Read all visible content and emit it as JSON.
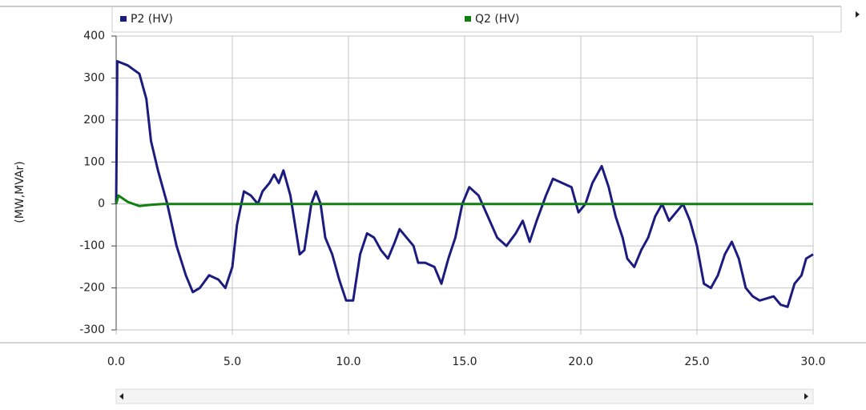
{
  "chart_data": {
    "type": "line",
    "y_label": "(MW,MVAr)",
    "xlim": [
      0,
      30
    ],
    "ylim": [
      -300,
      400
    ],
    "xticks": [
      {
        "value": 0,
        "label": "0.0"
      },
      {
        "value": 5,
        "label": "5.0"
      },
      {
        "value": 10,
        "label": "10.0"
      },
      {
        "value": 15,
        "label": "15.0"
      },
      {
        "value": 20,
        "label": "20.0"
      },
      {
        "value": 25,
        "label": "25.0"
      },
      {
        "value": 30,
        "label": "30.0"
      }
    ],
    "yticks": [
      -300,
      -200,
      -100,
      0,
      100,
      200,
      300,
      400
    ],
    "grid": true,
    "series": [
      {
        "name": "P2 (HV)",
        "color": "#1c1c80",
        "x": [
          0,
          0.05,
          0.5,
          1.0,
          1.3,
          1.5,
          1.8,
          2.2,
          2.6,
          3.0,
          3.3,
          3.6,
          4.0,
          4.4,
          4.7,
          5.0,
          5.2,
          5.5,
          5.8,
          6.1,
          6.3,
          6.6,
          6.8,
          7.0,
          7.2,
          7.5,
          7.7,
          7.9,
          8.1,
          8.4,
          8.6,
          8.8,
          9.0,
          9.3,
          9.6,
          9.9,
          10.2,
          10.5,
          10.8,
          11.1,
          11.4,
          11.7,
          12.0,
          12.2,
          12.5,
          12.8,
          13.0,
          13.3,
          13.7,
          14.0,
          14.3,
          14.6,
          14.9,
          15.2,
          15.6,
          16.0,
          16.4,
          16.8,
          17.2,
          17.5,
          17.8,
          18.1,
          18.5,
          18.8,
          19.2,
          19.6,
          19.9,
          20.2,
          20.5,
          20.9,
          21.2,
          21.5,
          21.8,
          22.0,
          22.3,
          22.6,
          22.9,
          23.2,
          23.5,
          23.8,
          24.1,
          24.4,
          24.7,
          25.0,
          25.3,
          25.6,
          25.9,
          26.2,
          26.5,
          26.8,
          27.1,
          27.4,
          27.7,
          28.0,
          28.3,
          28.6,
          28.9,
          29.2,
          29.5,
          29.7,
          30.0
        ],
        "values": [
          0,
          340,
          330,
          310,
          250,
          150,
          80,
          0,
          -100,
          -170,
          -210,
          -200,
          -170,
          -180,
          -200,
          -150,
          -50,
          30,
          20,
          0,
          30,
          50,
          70,
          50,
          80,
          20,
          -50,
          -120,
          -110,
          0,
          30,
          0,
          -80,
          -120,
          -180,
          -230,
          -230,
          -120,
          -70,
          -80,
          -110,
          -130,
          -90,
          -60,
          -80,
          -100,
          -140,
          -140,
          -150,
          -190,
          -130,
          -80,
          0,
          40,
          20,
          -30,
          -80,
          -100,
          -70,
          -40,
          -90,
          -40,
          20,
          60,
          50,
          40,
          -20,
          0,
          50,
          90,
          40,
          -30,
          -80,
          -130,
          -150,
          -110,
          -80,
          -30,
          0,
          -40,
          -20,
          0,
          -40,
          -100,
          -190,
          -200,
          -170,
          -120,
          -90,
          -130,
          -200,
          -220,
          -230,
          -225,
          -220,
          -240,
          -245,
          -190,
          -170,
          -130,
          -120
        ]
      },
      {
        "name": "Q2 (HV)",
        "color": "#108010",
        "x": [
          0,
          0.1,
          0.5,
          1.0,
          1.5,
          2.0,
          30
        ],
        "values": [
          0,
          20,
          5,
          -5,
          -2,
          0,
          0
        ]
      }
    ]
  }
}
